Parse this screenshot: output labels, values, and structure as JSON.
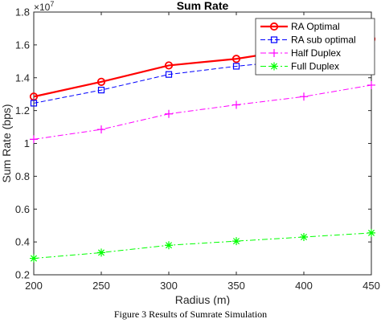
{
  "caption": "Figure 3 Results of Sumrate Simulation",
  "chart_data": {
    "type": "line",
    "title": "Sum Rate",
    "xlabel": "Radius (m)",
    "ylabel": "Sum Rate (bps)",
    "y_multiplier_base": "×10",
    "y_multiplier_exp": "7",
    "xlim": [
      200,
      450
    ],
    "ylim": [
      0.2,
      1.8
    ],
    "xticks": [
      200,
      250,
      300,
      350,
      400,
      450
    ],
    "xtick_labels": [
      "200",
      "250",
      "300",
      "350",
      "400",
      "450"
    ],
    "yticks": [
      0.2,
      0.4,
      0.6,
      0.8,
      1.0,
      1.2,
      1.4,
      1.6,
      1.8
    ],
    "ytick_labels": [
      "0.2",
      "0.4",
      "0.6",
      "0.8",
      "1",
      "1.2",
      "1.4",
      "1.6",
      "1.8"
    ],
    "grid": false,
    "legend_position": "top-right",
    "x": [
      200,
      250,
      300,
      350,
      400,
      450
    ],
    "series": [
      {
        "name": "RA Optimal",
        "values": [
          1.285,
          1.375,
          1.475,
          1.515,
          1.58,
          1.635
        ],
        "color": "#ff0000",
        "marker": "circle",
        "dash": "solid"
      },
      {
        "name": "RA sub optimal",
        "values": [
          1.245,
          1.325,
          1.42,
          1.47,
          1.51,
          1.58
        ],
        "color": "#0000ff",
        "marker": "square",
        "dash": "dashed"
      },
      {
        "name": "Half Duplex",
        "values": [
          1.025,
          1.085,
          1.18,
          1.235,
          1.285,
          1.355
        ],
        "color": "#ff00ff",
        "marker": "plus",
        "dash": "dashdot"
      },
      {
        "name": "Full Duplex",
        "values": [
          0.3,
          0.335,
          0.38,
          0.405,
          0.43,
          0.455
        ],
        "color": "#00ff00",
        "marker": "star",
        "dash": "dashdot"
      }
    ]
  }
}
